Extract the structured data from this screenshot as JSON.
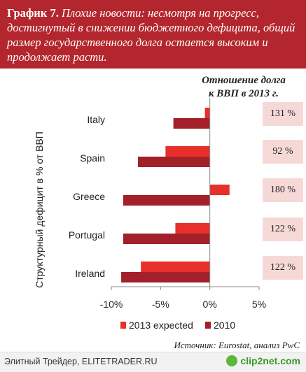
{
  "header": {
    "number": "График 7.",
    "text": "Плохие новости: несмотря на прогресс, достигнутый в снижении бюджетного дефицита, общий размер государственного долга остается высоким и продолжает расти."
  },
  "ratio_title_line1": "Отношение долга",
  "ratio_title_line2": "к ВВП в 2013 г.",
  "ratios": [
    "131 %",
    "92 %",
    "180 %",
    "122 %",
    "122 %"
  ],
  "source": "Источник: Eurostat, анализ PwC",
  "footer_left": "Элитный Трейдер, ELITETRADER.RU",
  "footer_logo": "clip2net.com",
  "colors": {
    "expected_2013": "#e8302a",
    "actual_2010": "#a3202a",
    "header_bg": "#b3262d",
    "ratio_bg": "#f6d9d6"
  },
  "chart_data": {
    "type": "bar",
    "orientation": "horizontal",
    "categories": [
      "Italy",
      "Spain",
      "Greece",
      "Portugal",
      "Ireland"
    ],
    "series": [
      {
        "name": "2013 expected",
        "values": [
          -0.5,
          -4.5,
          2.0,
          -3.5,
          -7.0
        ]
      },
      {
        "name": "2010",
        "values": [
          -3.7,
          -7.3,
          -8.8,
          -8.8,
          -9.0
        ]
      }
    ],
    "xticks": [
      "-10%",
      "-5%",
      "0%",
      "5%"
    ],
    "xlim": [
      -10,
      5
    ],
    "ylabel": "Структурный дефицит в % от ВВП",
    "legend": "bottom"
  }
}
